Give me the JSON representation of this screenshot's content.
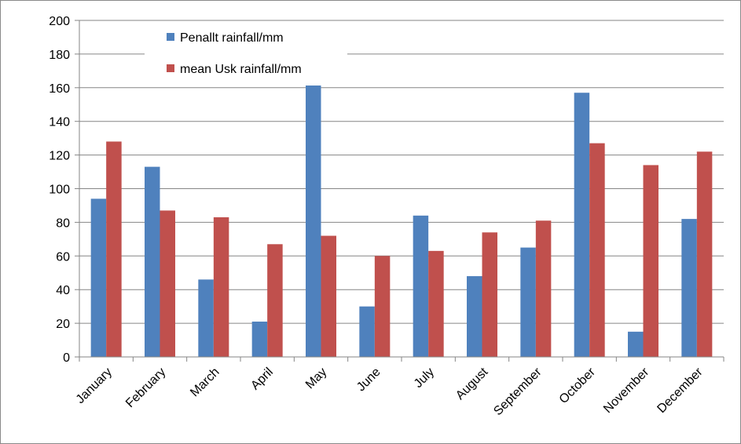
{
  "chart_data": {
    "type": "bar",
    "categories": [
      "January",
      "February",
      "March",
      "April",
      "May",
      "June",
      "July",
      "August",
      "September",
      "October",
      "November",
      "December"
    ],
    "series": [
      {
        "name": "Penallt rainfall/mm",
        "color": "#4f81bd",
        "values": [
          94,
          113,
          46,
          21,
          162,
          30,
          84,
          48,
          65,
          157,
          15,
          82
        ]
      },
      {
        "name": "mean Usk rainfall/mm",
        "color": "#c0504d",
        "values": [
          128,
          87,
          83,
          67,
          72,
          60,
          63,
          74,
          81,
          127,
          114,
          122
        ]
      }
    ],
    "title": "",
    "xlabel": "",
    "ylabel": "",
    "ylim": [
      0,
      200
    ],
    "yticks": [
      "0",
      "20",
      "40",
      "60",
      "80",
      "100",
      "120",
      "140",
      "160",
      "180",
      "200"
    ],
    "grid": true,
    "legend": "top-left"
  }
}
